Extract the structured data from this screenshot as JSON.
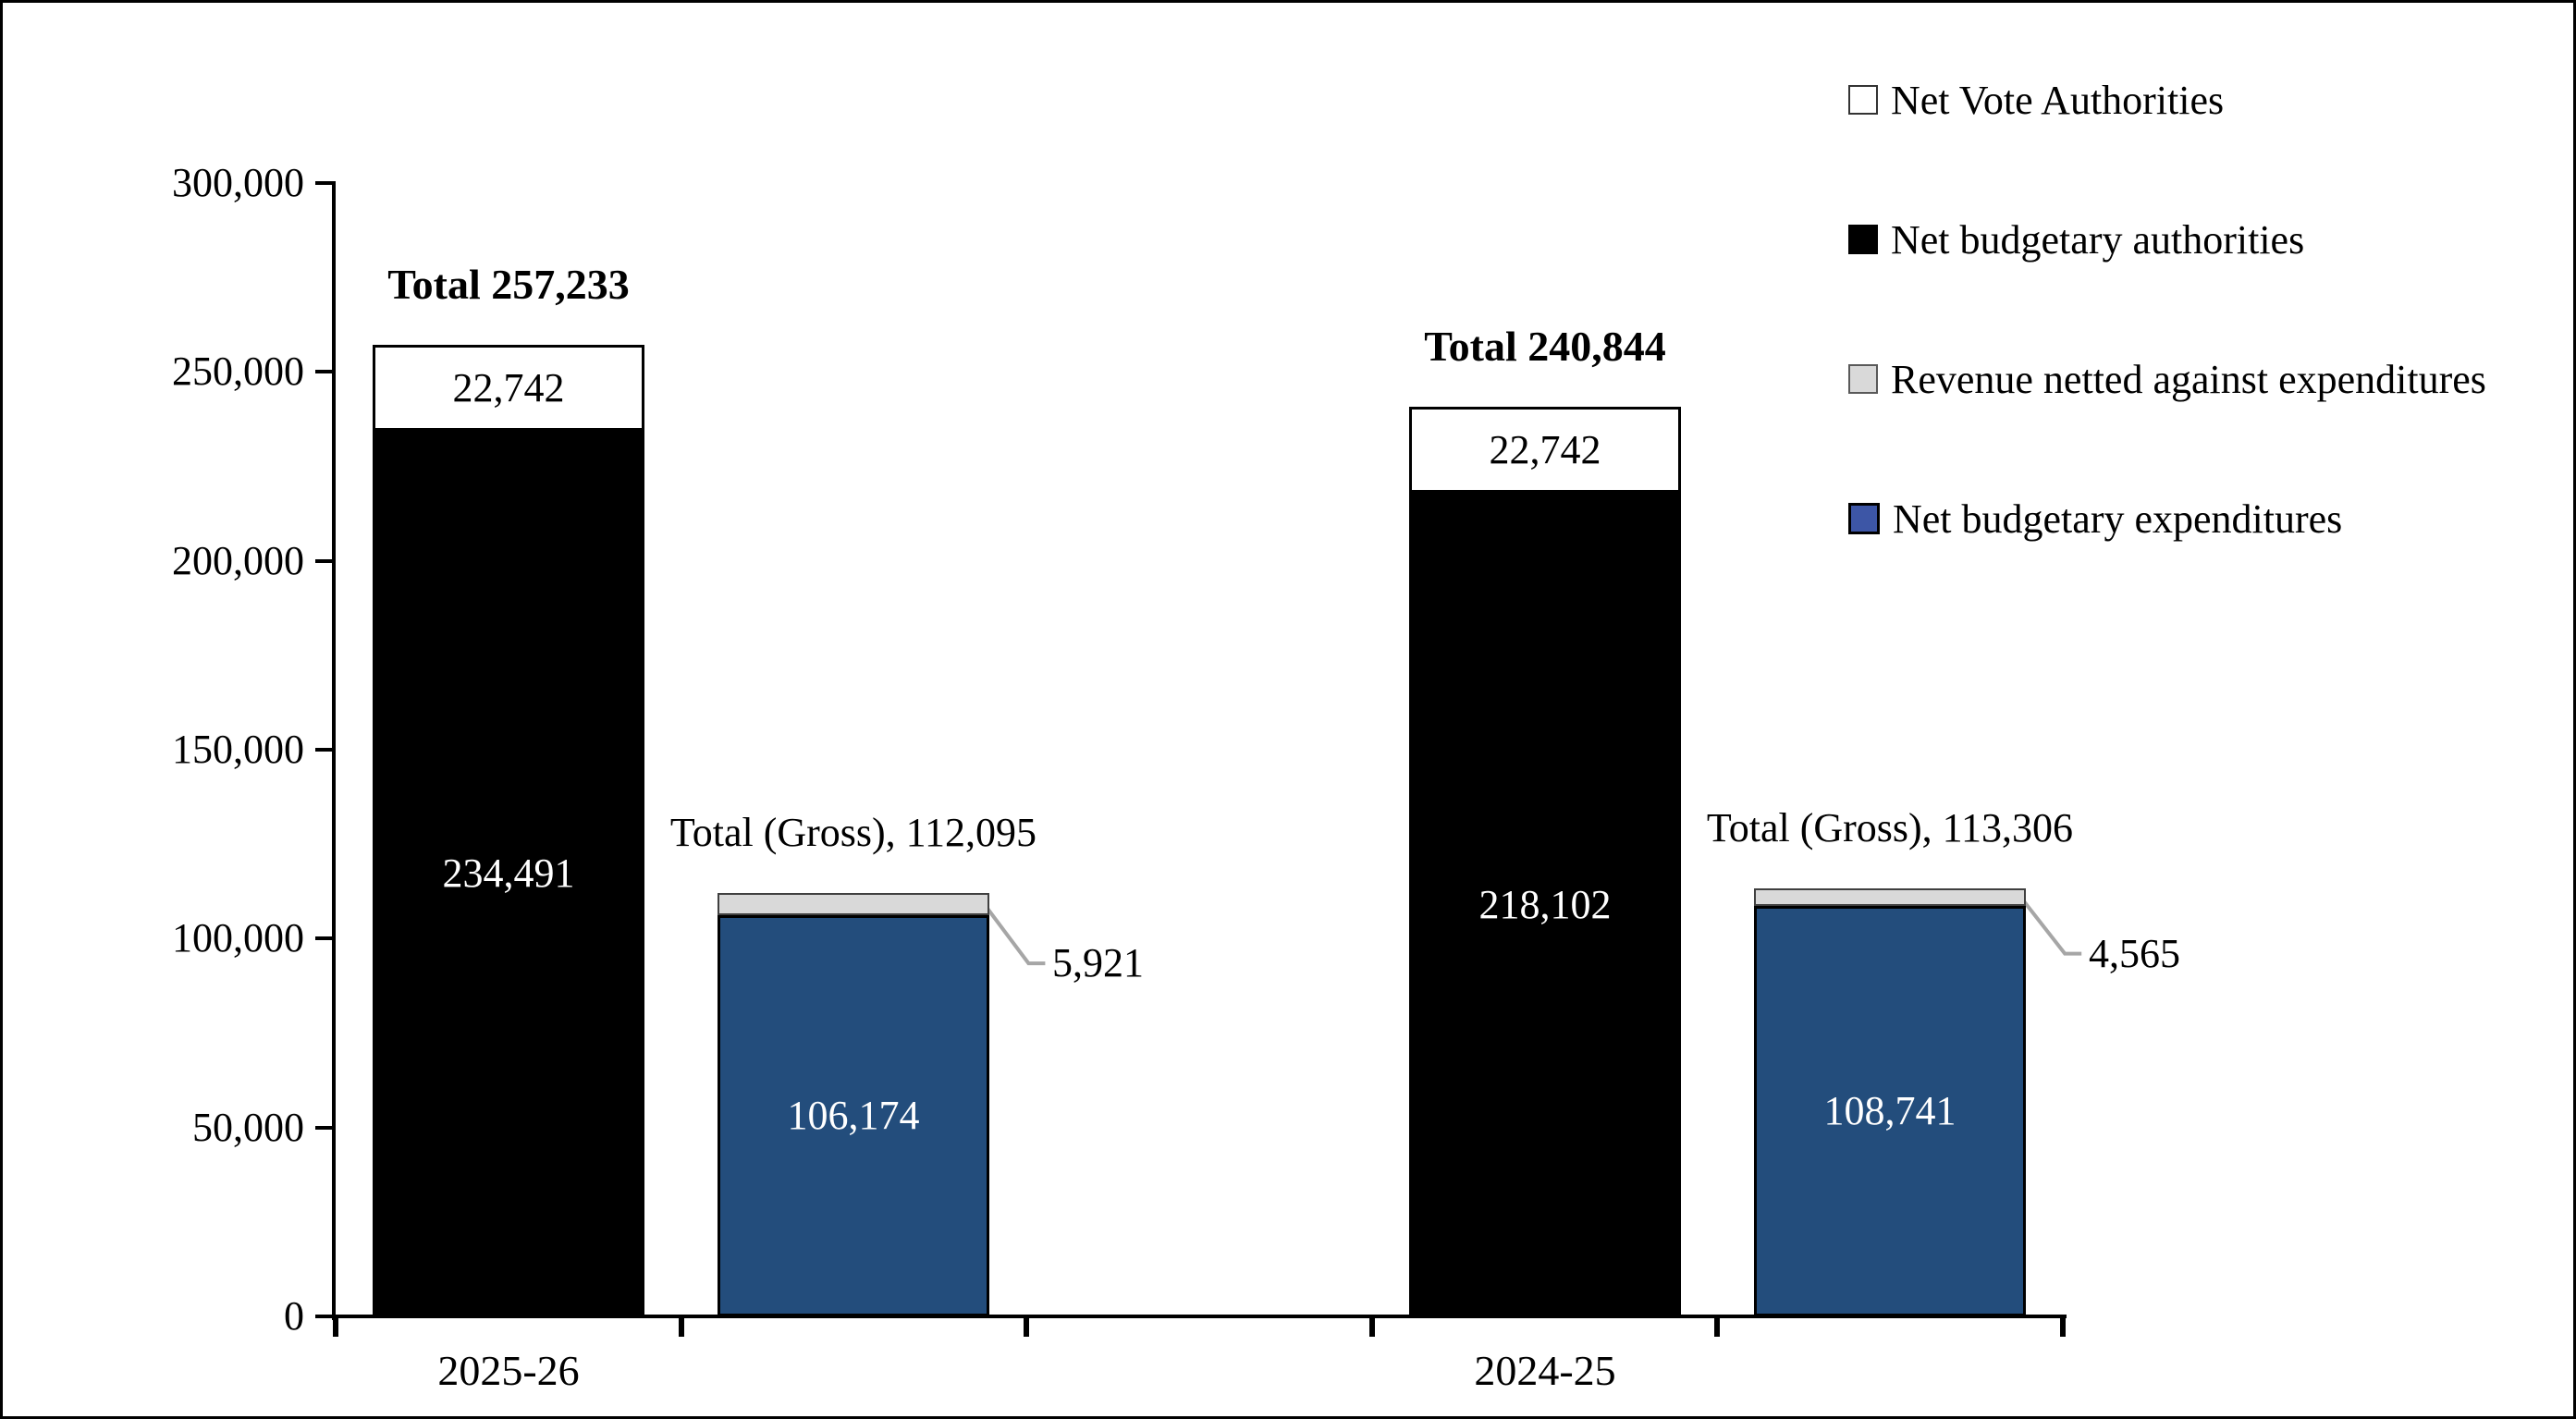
{
  "chart_data": {
    "type": "bar",
    "stacked": true,
    "title": "",
    "y_axis": {
      "min": 0,
      "max": 300000,
      "tick_step": 50000,
      "tick_labels": [
        "0",
        "50,000",
        "100,000",
        "150,000",
        "200,000",
        "250,000",
        "300,000"
      ]
    },
    "categories": [
      "2025-26",
      "2024-25"
    ],
    "grid": false,
    "legend": {
      "position": "top-right",
      "items": [
        {
          "label": "Net Vote Authorities",
          "fill": "#FFFFFF",
          "border": "#333333"
        },
        {
          "label": "Net budgetary authorities",
          "fill": "#000000",
          "border": "#000000"
        },
        {
          "label": "Revenue netted against expenditures",
          "fill": "#D9D9D9",
          "border": "#595959"
        },
        {
          "label": "Net budgetary expenditures",
          "fill": "#3D56A6",
          "border": "#000000"
        }
      ]
    },
    "groups": [
      {
        "category": "2025-26",
        "bars": [
          {
            "name": "authorities",
            "total": 257233,
            "total_label": "Total 257,233",
            "total_bold": true,
            "segments": [
              {
                "name": "Net budgetary authorities",
                "value": 234491,
                "label": "234,491",
                "fill": "#000000",
                "text_color": "#FFFFFF",
                "border": "#000000",
                "callout": false
              },
              {
                "name": "Net Vote Authorities",
                "value": 22742,
                "label": "22,742",
                "fill": "#FFFFFF",
                "text_color": "#000000",
                "border": "#000000",
                "callout": false
              }
            ]
          },
          {
            "name": "gross-expenditures",
            "total": 112095,
            "total_label": "Total (Gross), 112,095",
            "total_bold": false,
            "segments": [
              {
                "name": "Net budgetary expenditures",
                "value": 106174,
                "label": "106,174",
                "fill": "#234D7C",
                "text_color": "#FFFFFF",
                "border": "#000000",
                "callout": false
              },
              {
                "name": "Revenue netted against expenditures",
                "value": 5921,
                "label": "5,921",
                "fill": "#D9D9D9",
                "text_color": "#000000",
                "border": "#404040",
                "callout": true
              }
            ]
          }
        ]
      },
      {
        "category": "2024-25",
        "bars": [
          {
            "name": "authorities",
            "total": 240844,
            "total_label": "Total 240,844",
            "total_bold": true,
            "segments": [
              {
                "name": "Net budgetary authorities",
                "value": 218102,
                "label": "218,102",
                "fill": "#000000",
                "text_color": "#FFFFFF",
                "border": "#000000",
                "callout": false
              },
              {
                "name": "Net Vote Authorities",
                "value": 22742,
                "label": "22,742",
                "fill": "#FFFFFF",
                "text_color": "#000000",
                "border": "#000000",
                "callout": false
              }
            ]
          },
          {
            "name": "gross-expenditures",
            "total": 113306,
            "total_label": "Total (Gross), 113,306",
            "total_bold": false,
            "segments": [
              {
                "name": "Net budgetary expenditures",
                "value": 108741,
                "label": "108,741",
                "fill": "#234D7C",
                "text_color": "#FFFFFF",
                "border": "#000000",
                "callout": false
              },
              {
                "name": "Revenue netted against expenditures",
                "value": 4565,
                "label": "4,565",
                "fill": "#D9D9D9",
                "text_color": "#000000",
                "border": "#404040",
                "callout": true
              }
            ]
          }
        ]
      }
    ],
    "colors": {
      "leader_line": "#A6A6A6",
      "axis": "#000000",
      "frame_border": "#000000",
      "background": "#FFFFFF"
    }
  }
}
